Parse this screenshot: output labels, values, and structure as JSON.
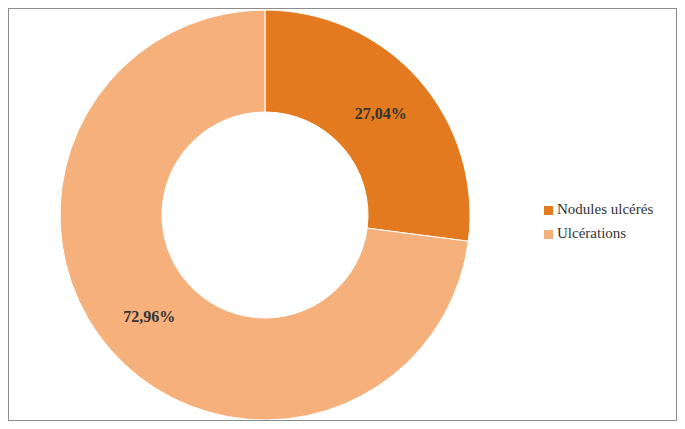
{
  "chart_data": {
    "type": "donut",
    "categories": [
      "Nodules ulcérés",
      "Ulcérations"
    ],
    "values": [
      27.04,
      72.96
    ],
    "value_labels": [
      "27,04%",
      "72,96%"
    ],
    "colors": [
      "#e37a1f",
      "#f5b07c"
    ],
    "data_labels": true,
    "legend": "right"
  }
}
